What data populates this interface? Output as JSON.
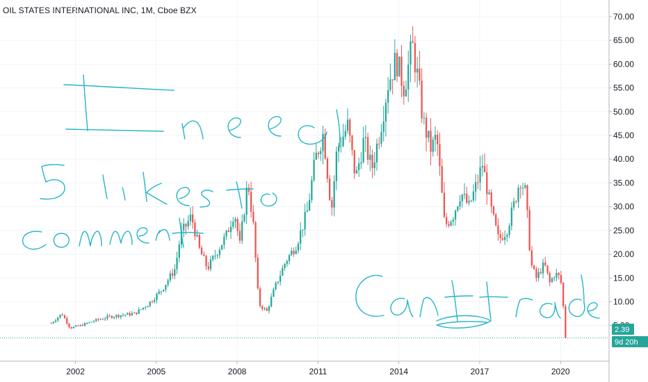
{
  "header": {
    "title": "OIL STATES INTERNATIONAL INC, 1M, Cboe BZX"
  },
  "colors": {
    "up": "#26a69a",
    "down": "#ef5350",
    "grid": "#f0f3fa",
    "axis": "#b2b5be",
    "price_line": "#26a69a",
    "annotation": "#22b5c7"
  },
  "price_badge": {
    "price": "2.39",
    "countdown": "9d 20h"
  },
  "annotations": [
    "I need",
    "5 likes to",
    "comment",
    "Cant trade"
  ],
  "chart_data": {
    "type": "candlestick",
    "title": "OIL STATES INTERNATIONAL INC, 1M, Cboe BZX",
    "interval": "1M",
    "x_range": [
      1999.2,
      2021.8
    ],
    "ylim": [
      -2.5,
      73.5
    ],
    "yticks": [
      5,
      10,
      15,
      20,
      25,
      30,
      35,
      40,
      45,
      50,
      55,
      60,
      65,
      70
    ],
    "ytick_labels": [
      "5.00",
      "10.00",
      "15.00",
      "20.00",
      "25.00",
      "30.00",
      "35.00",
      "40.00",
      "45.00",
      "50.00",
      "55.00",
      "60.00",
      "65.00",
      "70.00"
    ],
    "xticks": [
      2002,
      2005,
      2008,
      2011,
      2014,
      2017,
      2020
    ],
    "xtick_labels": [
      "2002",
      "2005",
      "2008",
      "2011",
      "2014",
      "2017",
      "2020"
    ],
    "last_price": 2.39,
    "close_path": [
      [
        2001.1,
        5.5
      ],
      [
        2001.5,
        7.5
      ],
      [
        2001.8,
        4.5
      ],
      [
        2002.2,
        5.0
      ],
      [
        2002.7,
        6.0
      ],
      [
        2003.2,
        6.8
      ],
      [
        2003.7,
        7.2
      ],
      [
        2004.2,
        7.5
      ],
      [
        2004.7,
        9.5
      ],
      [
        2005.2,
        12.5
      ],
      [
        2005.7,
        17.0
      ],
      [
        2005.9,
        24.0
      ],
      [
        2006.3,
        28.0
      ],
      [
        2006.6,
        21.0
      ],
      [
        2006.9,
        17.0
      ],
      [
        2007.2,
        20.0
      ],
      [
        2007.6,
        24.0
      ],
      [
        2007.9,
        29.0
      ],
      [
        2008.1,
        22.0
      ],
      [
        2008.4,
        35.5
      ],
      [
        2008.6,
        26.0
      ],
      [
        2008.8,
        9.5
      ],
      [
        2009.1,
        8.0
      ],
      [
        2009.4,
        13.0
      ],
      [
        2009.8,
        18.5
      ],
      [
        2010.2,
        22.0
      ],
      [
        2010.6,
        29.0
      ],
      [
        2010.9,
        40.0
      ],
      [
        2011.2,
        45.5
      ],
      [
        2011.5,
        29.0
      ],
      [
        2011.7,
        42.0
      ],
      [
        2012.1,
        47.0
      ],
      [
        2012.4,
        36.0
      ],
      [
        2012.7,
        44.0
      ],
      [
        2013.0,
        38.0
      ],
      [
        2013.3,
        46.0
      ],
      [
        2013.6,
        56.0
      ],
      [
        2013.9,
        61.0
      ],
      [
        2014.2,
        55.0
      ],
      [
        2014.5,
        64.0
      ],
      [
        2014.7,
        57.0
      ],
      [
        2014.9,
        48.0
      ],
      [
        2015.2,
        42.0
      ],
      [
        2015.4,
        45.0
      ],
      [
        2015.7,
        26.0
      ],
      [
        2016.0,
        28.0
      ],
      [
        2016.3,
        33.0
      ],
      [
        2016.6,
        30.0
      ],
      [
        2016.9,
        35.0
      ],
      [
        2017.1,
        39.0
      ],
      [
        2017.4,
        30.0
      ],
      [
        2017.7,
        23.0
      ],
      [
        2018.0,
        25.0
      ],
      [
        2018.3,
        31.0
      ],
      [
        2018.5,
        36.0
      ],
      [
        2018.7,
        33.0
      ],
      [
        2018.9,
        18.0
      ],
      [
        2019.1,
        15.0
      ],
      [
        2019.4,
        18.0
      ],
      [
        2019.6,
        14.0
      ],
      [
        2019.8,
        16.0
      ],
      [
        2020.0,
        15.0
      ],
      [
        2020.1,
        9.0
      ],
      [
        2020.2,
        2.39
      ]
    ]
  }
}
